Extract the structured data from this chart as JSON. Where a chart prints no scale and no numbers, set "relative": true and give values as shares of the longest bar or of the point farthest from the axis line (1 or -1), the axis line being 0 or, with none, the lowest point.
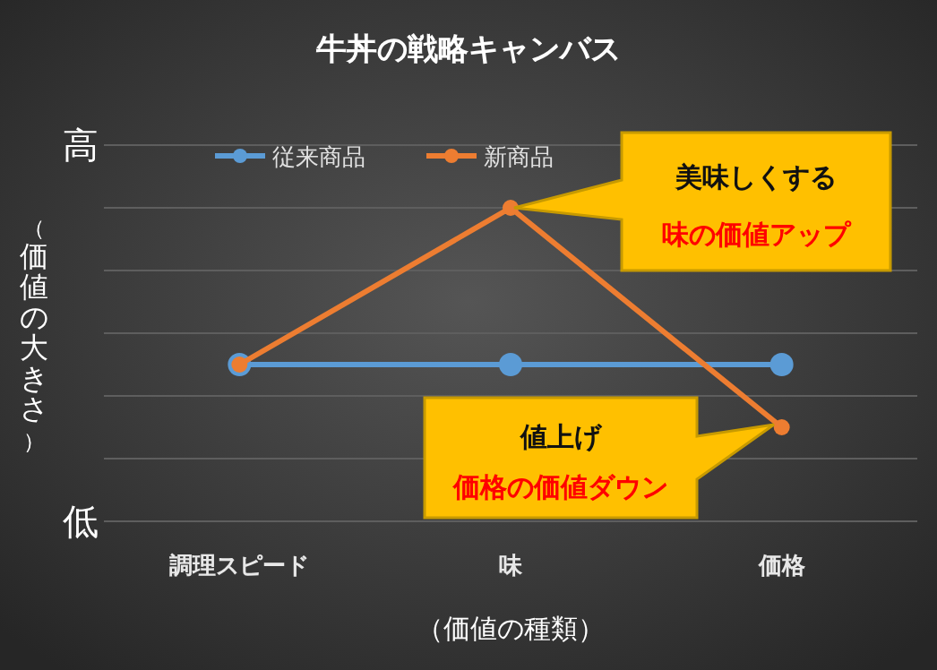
{
  "chart_data": {
    "type": "line",
    "title": "牛丼の戦略キャンバス",
    "xlabel": "（価値の種類）",
    "ylabel": "（価値の大きさ）",
    "categories": [
      "調理スピード",
      "味",
      "価格"
    ],
    "series": [
      {
        "name": "従来商品",
        "color": "#5b9bd5",
        "values": [
          0.5,
          0.5,
          0.5
        ]
      },
      {
        "name": "新商品",
        "color": "#ed7d31",
        "values": [
          0.5,
          1,
          0.3
        ]
      }
    ],
    "relative": true,
    "grid": "y",
    "legend": "top",
    "marker": "circle",
    "line_style": "solid",
    "annotations": [
      "高",
      "低",
      "美味しくする",
      "味の価値アップ",
      "値上げ",
      "価格の価値ダウン"
    ]
  }
}
